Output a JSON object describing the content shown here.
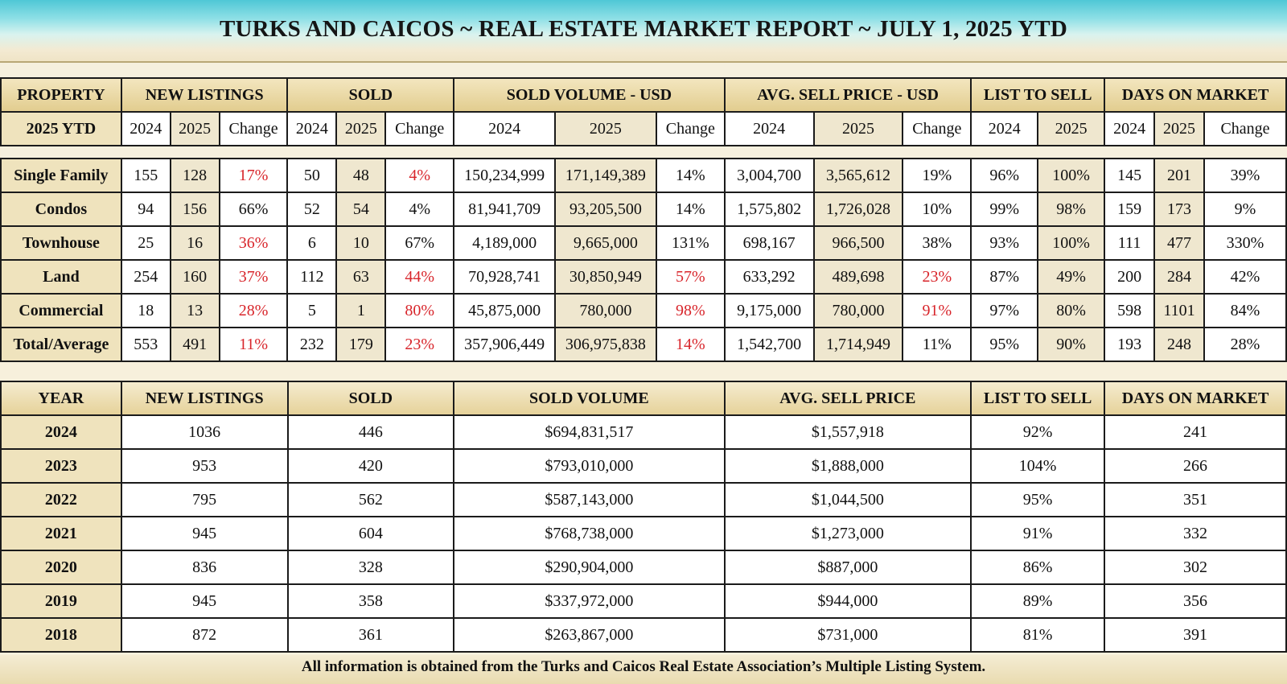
{
  "title": "TURKS AND CAICOS ~ REAL ESTATE MARKET REPORT ~  JULY 1, 2025 YTD",
  "top_headers": [
    "PROPERTY",
    "NEW LISTINGS",
    "SOLD",
    "SOLD VOLUME - USD",
    "AVG. SELL PRICE - USD",
    "LIST TO SELL",
    "DAYS ON MARKET"
  ],
  "sub_headers": [
    "2025 YTD",
    "2024",
    "2025",
    "Change",
    "2024",
    "2025",
    "Change",
    "2024",
    "2025",
    "Change",
    "2024",
    "2025",
    "Change",
    "2024",
    "2025",
    "2024",
    "2025",
    "Change"
  ],
  "property_rows": [
    {
      "label": "Single Family",
      "cells": [
        "155",
        "128",
        "17%",
        "50",
        "48",
        "4%",
        "150,234,999",
        "171,149,389",
        "14%",
        "3,004,700",
        "3,565,612",
        "19%",
        "96%",
        "100%",
        "145",
        "201",
        "39%"
      ],
      "red": [
        2,
        5
      ]
    },
    {
      "label": "Condos",
      "cells": [
        "94",
        "156",
        "66%",
        "52",
        "54",
        "4%",
        "81,941,709",
        "93,205,500",
        "14%",
        "1,575,802",
        "1,726,028",
        "10%",
        "99%",
        "98%",
        "159",
        "173",
        "9%"
      ],
      "red": []
    },
    {
      "label": "Townhouse",
      "cells": [
        "25",
        "16",
        "36%",
        "6",
        "10",
        "67%",
        "4,189,000",
        "9,665,000",
        "131%",
        "698,167",
        "966,500",
        "38%",
        "93%",
        "100%",
        "111",
        "477",
        "330%"
      ],
      "red": [
        2
      ]
    },
    {
      "label": "Land",
      "cells": [
        "254",
        "160",
        "37%",
        "112",
        "63",
        "44%",
        "70,928,741",
        "30,850,949",
        "57%",
        "633,292",
        "489,698",
        "23%",
        "87%",
        "49%",
        "200",
        "284",
        "42%"
      ],
      "red": [
        2,
        5,
        8,
        11
      ]
    },
    {
      "label": "Commercial",
      "cells": [
        "18",
        "13",
        "28%",
        "5",
        "1",
        "80%",
        "45,875,000",
        "780,000",
        "98%",
        "9,175,000",
        "780,000",
        "91%",
        "97%",
        "80%",
        "598",
        "1101",
        "84%"
      ],
      "red": [
        2,
        5,
        8,
        11
      ]
    },
    {
      "label": "Total/Average",
      "cells": [
        "553",
        "491",
        "11%",
        "232",
        "179",
        "23%",
        "357,906,449",
        "306,975,838",
        "14%",
        "1,542,700",
        "1,714,949",
        "11%",
        "95%",
        "90%",
        "193",
        "248",
        "28%"
      ],
      "red": [
        2,
        5,
        8
      ]
    }
  ],
  "year_headers": [
    "YEAR",
    "NEW LISTINGS",
    "SOLD",
    "SOLD VOLUME",
    "AVG. SELL PRICE",
    "LIST TO SELL",
    "DAYS ON MARKET"
  ],
  "year_rows": [
    [
      "2024",
      "1036",
      "446",
      "$694,831,517",
      "$1,557,918",
      "92%",
      "241"
    ],
    [
      "2023",
      "953",
      "420",
      "$793,010,000",
      "$1,888,000",
      "104%",
      "266"
    ],
    [
      "2022",
      "795",
      "562",
      "$587,143,000",
      "$1,044,500",
      "95%",
      "351"
    ],
    [
      "2021",
      "945",
      "604",
      "$768,738,000",
      "$1,273,000",
      "91%",
      "332"
    ],
    [
      "2020",
      "836",
      "328",
      "$290,904,000",
      "$887,000",
      "86%",
      "302"
    ],
    [
      "2019",
      "945",
      "358",
      "$337,972,000",
      "$944,000",
      "89%",
      "356"
    ],
    [
      "2018",
      "872",
      "361",
      "$263,867,000",
      "$731,000",
      "81%",
      "391"
    ]
  ],
  "footer": "All information is obtained from the Turks and Caicos Real Estate Association’s Multiple Listing System."
}
